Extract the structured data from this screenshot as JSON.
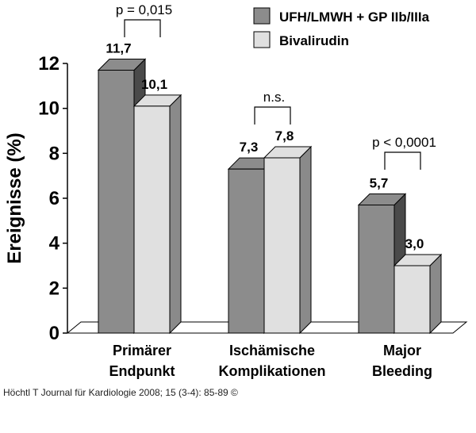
{
  "chart_data": {
    "type": "bar",
    "categories": [
      [
        "Primärer",
        "Endpunkt"
      ],
      [
        "Ischämische",
        "Komplikationen"
      ],
      [
        "Major",
        "Bleeding"
      ]
    ],
    "series": [
      {
        "name": "UFH/LMWH + GP IIb/IIIa",
        "values": [
          11.7,
          7.3,
          5.7
        ],
        "value_labels": [
          "11,7",
          "7,3",
          "5,7"
        ],
        "color": "#8c8c8c",
        "side_color": "#4a4a4a"
      },
      {
        "name": "Bivalirudin",
        "values": [
          10.1,
          7.8,
          3.0
        ],
        "value_labels": [
          "10,1",
          "7,8",
          "3,0"
        ],
        "color": "#e0e0e0",
        "side_color": "#8a8a8a"
      }
    ],
    "ylabel": "Ereignisse (%)",
    "ylim": [
      0,
      12
    ],
    "yticks": [
      0,
      2,
      4,
      6,
      8,
      10,
      12
    ],
    "grid": false,
    "legend": "top-right",
    "annotations": [
      "p = 0,015",
      "n.s.",
      "p < 0,0001"
    ]
  },
  "footer": "Höchtl T Journal für Kardiologie 2008; 15 (3-4): 85-89 ©"
}
